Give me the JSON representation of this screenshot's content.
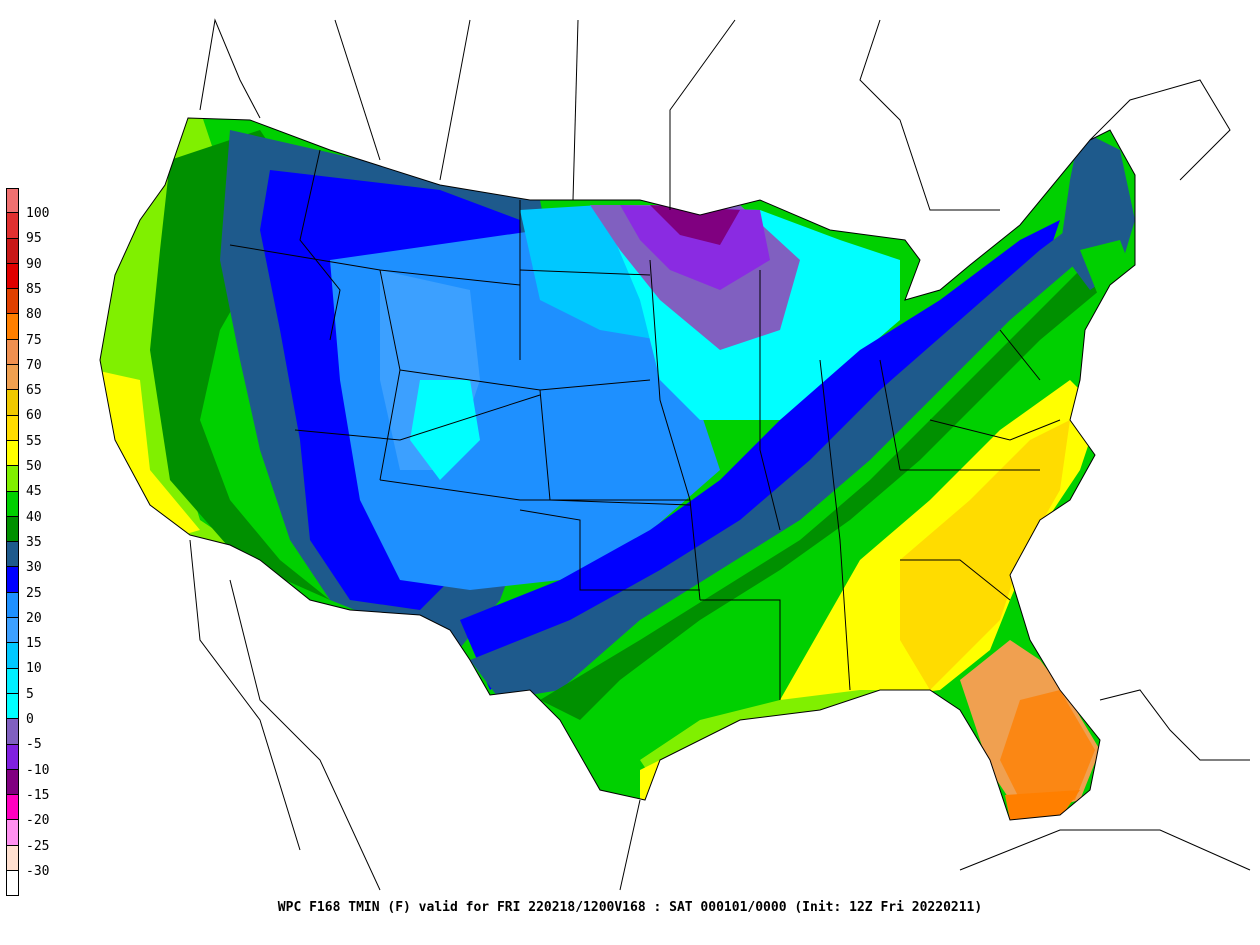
{
  "caption": "WPC F168 TMIN (F) valid for  FRI 220218/1200V168 : SAT 000101/0000 (Init: 12Z Fri 20220211)",
  "legend": {
    "labels": [
      "100",
      "95",
      "90",
      "85",
      "80",
      "75",
      "70",
      "65",
      "60",
      "55",
      "50",
      "45",
      "40",
      "35",
      "30",
      "25",
      "20",
      "15",
      "10",
      "5",
      "0",
      "-5",
      "-10",
      "-15",
      "-20",
      "-25",
      "-30"
    ],
    "colors": [
      "#f07070",
      "#e03030",
      "#c81818",
      "#e00000",
      "#e04000",
      "#ff7f00",
      "#f09050",
      "#f0a050",
      "#f0c800",
      "#ffdc00",
      "#ffff00",
      "#80f000",
      "#00d000",
      "#009000",
      "#1e5a8c",
      "#0000ff",
      "#1e90ff",
      "#3ca0ff",
      "#00c8ff",
      "#00f0ff",
      "#00ffff",
      "#8060c0",
      "#8020e0",
      "#800080",
      "#ff00c0",
      "#ff90f0",
      "#ffe0d0",
      "#ffffff"
    ]
  },
  "palette": {
    "cold_purple": "#8a2be2",
    "deep_purple": "#800080",
    "cyan": "#00f0ff",
    "light_blue": "#1e90ff",
    "blue": "#0000ff",
    "dark_blue": "#1e5a8c",
    "dark_green": "#009000",
    "green": "#00d000",
    "light_green": "#80f000",
    "yellow": "#ffff00",
    "gold": "#ffdc00",
    "orange_light": "#f0a050",
    "orange": "#ff7f00"
  }
}
